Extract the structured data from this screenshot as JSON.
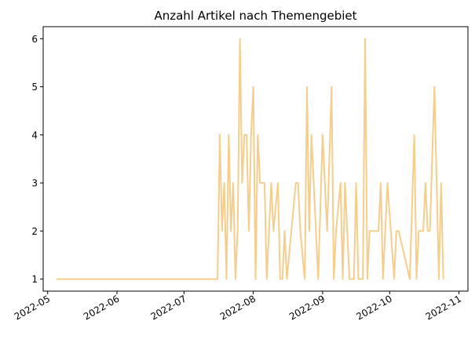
{
  "chart_data": {
    "type": "line",
    "title": "Anzahl Artikel nach Themengebiet",
    "xlabel": "",
    "ylabel": "",
    "x_axis": "date",
    "xlim": [
      "2022-04-29",
      "2022-11-05"
    ],
    "ylim": [
      0.75,
      6.25
    ],
    "grid": false,
    "legend": "none",
    "xticks": [
      "2022-05",
      "2022-06",
      "2022-07",
      "2022-08",
      "2022-09",
      "2022-10",
      "2022-11"
    ],
    "yticks": [
      1,
      2,
      3,
      4,
      5,
      6
    ],
    "line_color": "#f5cd8c",
    "series": [
      {
        "x": [
          "2022-05-05",
          "2022-07-16",
          "2022-07-17",
          "2022-07-18",
          "2022-07-19",
          "2022-07-20",
          "2022-07-21",
          "2022-07-22",
          "2022-07-23",
          "2022-07-24",
          "2022-07-25",
          "2022-07-26",
          "2022-07-27",
          "2022-07-28",
          "2022-07-29",
          "2022-07-30",
          "2022-07-31",
          "2022-08-01",
          "2022-08-02",
          "2022-08-03",
          "2022-08-04",
          "2022-08-06",
          "2022-08-07",
          "2022-08-08",
          "2022-08-09",
          "2022-08-10",
          "2022-08-12",
          "2022-08-13",
          "2022-08-14",
          "2022-08-15",
          "2022-08-16",
          "2022-08-20",
          "2022-08-21",
          "2022-08-22",
          "2022-08-24",
          "2022-08-25",
          "2022-08-26",
          "2022-08-27",
          "2022-08-28",
          "2022-08-30",
          "2022-09-01",
          "2022-09-03",
          "2022-09-05",
          "2022-09-06",
          "2022-09-07",
          "2022-09-09",
          "2022-09-10",
          "2022-09-11",
          "2022-09-12",
          "2022-09-13",
          "2022-09-14",
          "2022-09-15",
          "2022-09-16",
          "2022-09-17",
          "2022-09-19",
          "2022-09-20",
          "2022-09-21",
          "2022-09-22",
          "2022-09-23",
          "2022-09-26",
          "2022-09-27",
          "2022-09-28",
          "2022-09-29",
          "2022-09-30",
          "2022-10-03",
          "2022-10-04",
          "2022-10-05",
          "2022-10-10",
          "2022-10-12",
          "2022-10-13",
          "2022-10-14",
          "2022-10-16",
          "2022-10-17",
          "2022-10-18",
          "2022-10-19",
          "2022-10-21",
          "2022-10-22",
          "2022-10-23",
          "2022-10-24",
          "2022-10-25"
        ],
        "y": [
          1,
          1,
          4,
          2,
          3,
          1,
          4,
          2,
          3,
          1,
          2,
          6,
          3,
          4,
          4,
          2,
          4,
          5,
          1,
          4,
          3,
          3,
          1,
          2,
          3,
          2,
          3,
          1,
          1,
          2,
          1,
          3,
          3,
          2,
          1,
          5,
          2,
          4,
          3,
          1,
          4,
          2,
          5,
          1,
          2,
          3,
          1,
          3,
          2,
          1,
          1,
          1,
          3,
          1,
          1,
          6,
          1,
          2,
          2,
          2,
          3,
          1,
          2,
          3,
          1,
          2,
          2,
          1,
          4,
          1,
          2,
          2,
          3,
          2,
          2,
          5,
          3,
          1,
          3,
          1
        ]
      }
    ]
  }
}
